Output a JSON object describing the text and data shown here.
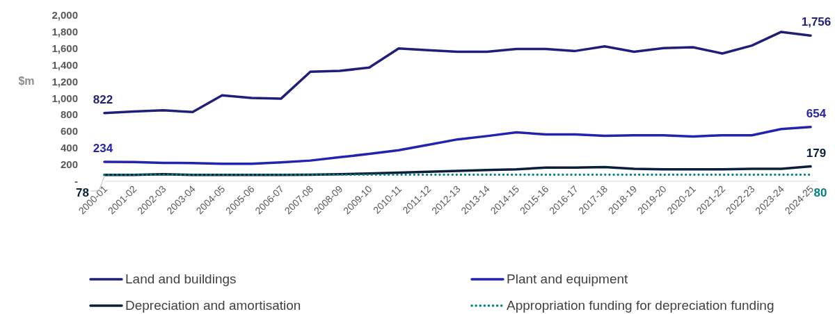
{
  "chart_data": {
    "type": "line",
    "ylabel": "$m",
    "categories": [
      "2000-01",
      "2001-02",
      "2002-03",
      "2003-04",
      "2004-05",
      "2005-06",
      "2006-07",
      "2007-08",
      "2008-09",
      "2009-10",
      "2010-11",
      "2011-12",
      "2012-13",
      "2013-14",
      "2014-15",
      "2015-16",
      "2016-17",
      "2017-18",
      "2018-19",
      "2019-20",
      "2020-21",
      "2021-22",
      "2022-23",
      "2023-24",
      "2024-25"
    ],
    "ylim": [
      0,
      2000
    ],
    "yticks": [
      {
        "value": 0,
        "label": "-"
      },
      {
        "value": 200,
        "label": "200"
      },
      {
        "value": 400,
        "label": "400"
      },
      {
        "value": 600,
        "label": "600"
      },
      {
        "value": 800,
        "label": "800"
      },
      {
        "value": 1000,
        "label": "1,000"
      },
      {
        "value": 1200,
        "label": "1,200"
      },
      {
        "value": 1400,
        "label": "1,400"
      },
      {
        "value": 1600,
        "label": "1,600"
      },
      {
        "value": 1800,
        "label": "1,800"
      },
      {
        "value": 2000,
        "label": "2,000"
      }
    ],
    "grid": false,
    "legend": "bottom",
    "marker": "none",
    "series": [
      {
        "name": "Land and buildings",
        "color": "#1f1f7a",
        "line_style": "solid",
        "values": [
          822,
          840,
          855,
          835,
          1035,
          1005,
          995,
          1320,
          1330,
          1370,
          1600,
          1580,
          1560,
          1560,
          1595,
          1595,
          1570,
          1625,
          1560,
          1605,
          1615,
          1540,
          1635,
          1800,
          1756
        ],
        "value_labels": [
          "822",
          null,
          null,
          null,
          null,
          null,
          null,
          null,
          null,
          null,
          null,
          null,
          null,
          null,
          null,
          null,
          null,
          null,
          null,
          null,
          null,
          null,
          null,
          null,
          "1,756"
        ]
      },
      {
        "name": "Plant and equipment",
        "color": "#2323b0",
        "line_style": "solid",
        "values": [
          234,
          232,
          222,
          220,
          212,
          212,
          228,
          250,
          290,
          330,
          375,
          440,
          505,
          545,
          590,
          565,
          565,
          548,
          555,
          555,
          540,
          555,
          555,
          630,
          654
        ],
        "value_labels": [
          "234",
          null,
          null,
          null,
          null,
          null,
          null,
          null,
          null,
          null,
          null,
          null,
          null,
          null,
          null,
          null,
          null,
          null,
          null,
          null,
          null,
          null,
          null,
          null,
          "654"
        ]
      },
      {
        "name": "Depreciation and amortisation",
        "color": "#0a1e3a",
        "line_style": "solid",
        "values": [
          78,
          78,
          85,
          78,
          78,
          78,
          78,
          80,
          85,
          95,
          105,
          115,
          125,
          135,
          145,
          165,
          165,
          172,
          150,
          145,
          145,
          145,
          150,
          150,
          179
        ],
        "value_labels": [
          "78",
          null,
          null,
          null,
          null,
          null,
          null,
          null,
          null,
          null,
          null,
          null,
          null,
          null,
          null,
          null,
          null,
          null,
          null,
          null,
          null,
          null,
          null,
          null,
          "179"
        ]
      },
      {
        "name": "Appropriation funding for depreciation funding",
        "color": "#008080",
        "line_style": "dotted",
        "values": [
          80,
          80,
          80,
          80,
          80,
          80,
          80,
          80,
          80,
          80,
          80,
          80,
          80,
          80,
          80,
          80,
          80,
          80,
          80,
          80,
          80,
          80,
          80,
          80,
          80
        ],
        "value_labels": [
          null,
          null,
          null,
          null,
          null,
          null,
          null,
          null,
          null,
          null,
          null,
          null,
          null,
          null,
          null,
          null,
          null,
          null,
          null,
          null,
          null,
          null,
          null,
          null,
          "80"
        ]
      }
    ]
  }
}
